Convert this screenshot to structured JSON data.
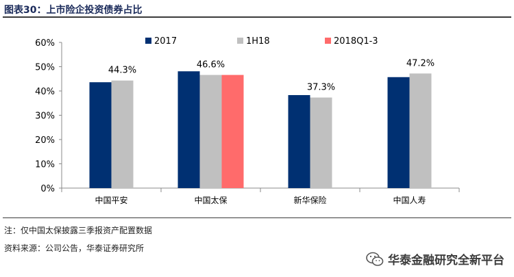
{
  "title": "图表30：上市险企投资债券占比",
  "notes": {
    "note": "注：仅中国太保披露三季报资产配置数据",
    "source": "资料来源：公司公告，华泰证券研究所"
  },
  "watermark": {
    "text": "华泰金融研究全新平台",
    "logo": "wechat-logo-icon"
  },
  "colors": {
    "s2017": "#003072",
    "s1H18": "#c0c0c0",
    "s2018Q1_3": "#ff6b6b",
    "axis": "#888888"
  },
  "chart_data": {
    "type": "bar",
    "title": "",
    "xlabel": "",
    "ylabel": "",
    "ylim": [
      0,
      60
    ],
    "yticks": [
      "0%",
      "10%",
      "20%",
      "30%",
      "40%",
      "50%",
      "60%"
    ],
    "legend_position": "top-center",
    "categories": [
      "中国平安",
      "中国太保",
      "新华保险",
      "中国人寿"
    ],
    "series": [
      {
        "name": "2017",
        "values": [
          43.6,
          48.1,
          38.3,
          45.7
        ]
      },
      {
        "name": "1H18",
        "values": [
          44.3,
          46.6,
          37.3,
          47.2
        ]
      },
      {
        "name": "2018Q1-3",
        "values": [
          null,
          46.6,
          null,
          null
        ]
      }
    ],
    "data_labels": [
      {
        "category": "中国平安",
        "text": "44.3%"
      },
      {
        "category": "中国太保",
        "text": "46.6%"
      },
      {
        "category": "新华保险",
        "text": "37.3%"
      },
      {
        "category": "中国人寿",
        "text": "47.2%"
      }
    ]
  }
}
